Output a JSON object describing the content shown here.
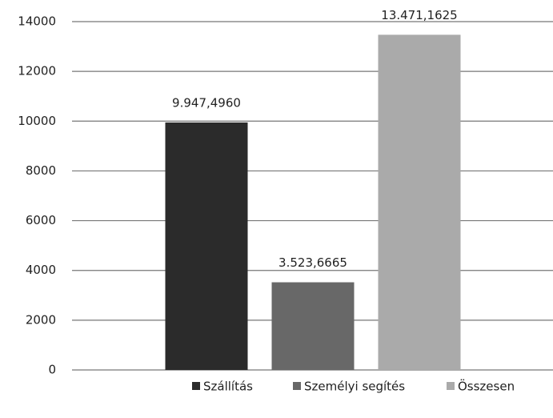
{
  "chart_data": {
    "type": "bar",
    "categories": [
      null
    ],
    "series": [
      {
        "name": "Szállítás",
        "color": "#2b2b2b",
        "values": [
          9947.496
        ],
        "value_labels": [
          "9.947,4960"
        ]
      },
      {
        "name": "Személyi segítés",
        "color": "#686868",
        "values": [
          3523.6665
        ],
        "value_labels": [
          "3.523,6665"
        ]
      },
      {
        "name": "Összesen",
        "color": "#aaaaaa",
        "values": [
          13471.1625
        ],
        "value_labels": [
          "13.471,1625"
        ]
      }
    ],
    "ylim": [
      0,
      14000
    ],
    "yticks": [
      0,
      2000,
      4000,
      6000,
      8000,
      10000,
      12000,
      14000
    ],
    "grid": true,
    "legend": "bottom"
  }
}
